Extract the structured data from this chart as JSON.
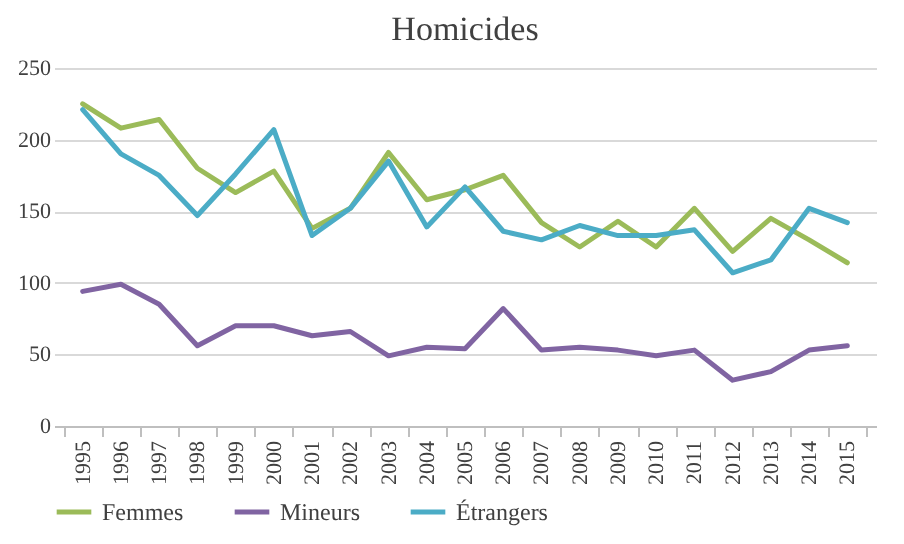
{
  "chart_data": {
    "type": "line",
    "title": "Homicides",
    "categories": [
      "1995",
      "1996",
      "1997",
      "1998",
      "1999",
      "2000",
      "2001",
      "2002",
      "2003",
      "2004",
      "2005",
      "2006",
      "2007",
      "2008",
      "2009",
      "2010",
      "2011",
      "2012",
      "2013",
      "2014",
      "2015"
    ],
    "series": [
      {
        "name": "Femmes",
        "color": "#9bbb59",
        "values": [
          225,
          208,
          214,
          180,
          163,
          178,
          138,
          152,
          191,
          158,
          165,
          175,
          142,
          125,
          143,
          125,
          152,
          122,
          145,
          130,
          114
        ]
      },
      {
        "name": "Mineurs",
        "color": "#8064a2",
        "values": [
          94,
          99,
          85,
          56,
          70,
          70,
          63,
          66,
          49,
          55,
          54,
          82,
          53,
          55,
          53,
          49,
          53,
          32,
          38,
          53,
          56
        ]
      },
      {
        "name": "Étrangers",
        "color": "#4bacc6",
        "values": [
          221,
          190,
          175,
          147,
          176,
          207,
          133,
          152,
          185,
          139,
          167,
          136,
          130,
          140,
          133,
          133,
          137,
          107,
          116,
          152,
          142
        ]
      }
    ],
    "ylim": [
      0,
      250
    ],
    "yticks": [
      0,
      50,
      100,
      150,
      200,
      250
    ],
    "grid": "y",
    "legend": "bottom",
    "line_style": "solid"
  }
}
